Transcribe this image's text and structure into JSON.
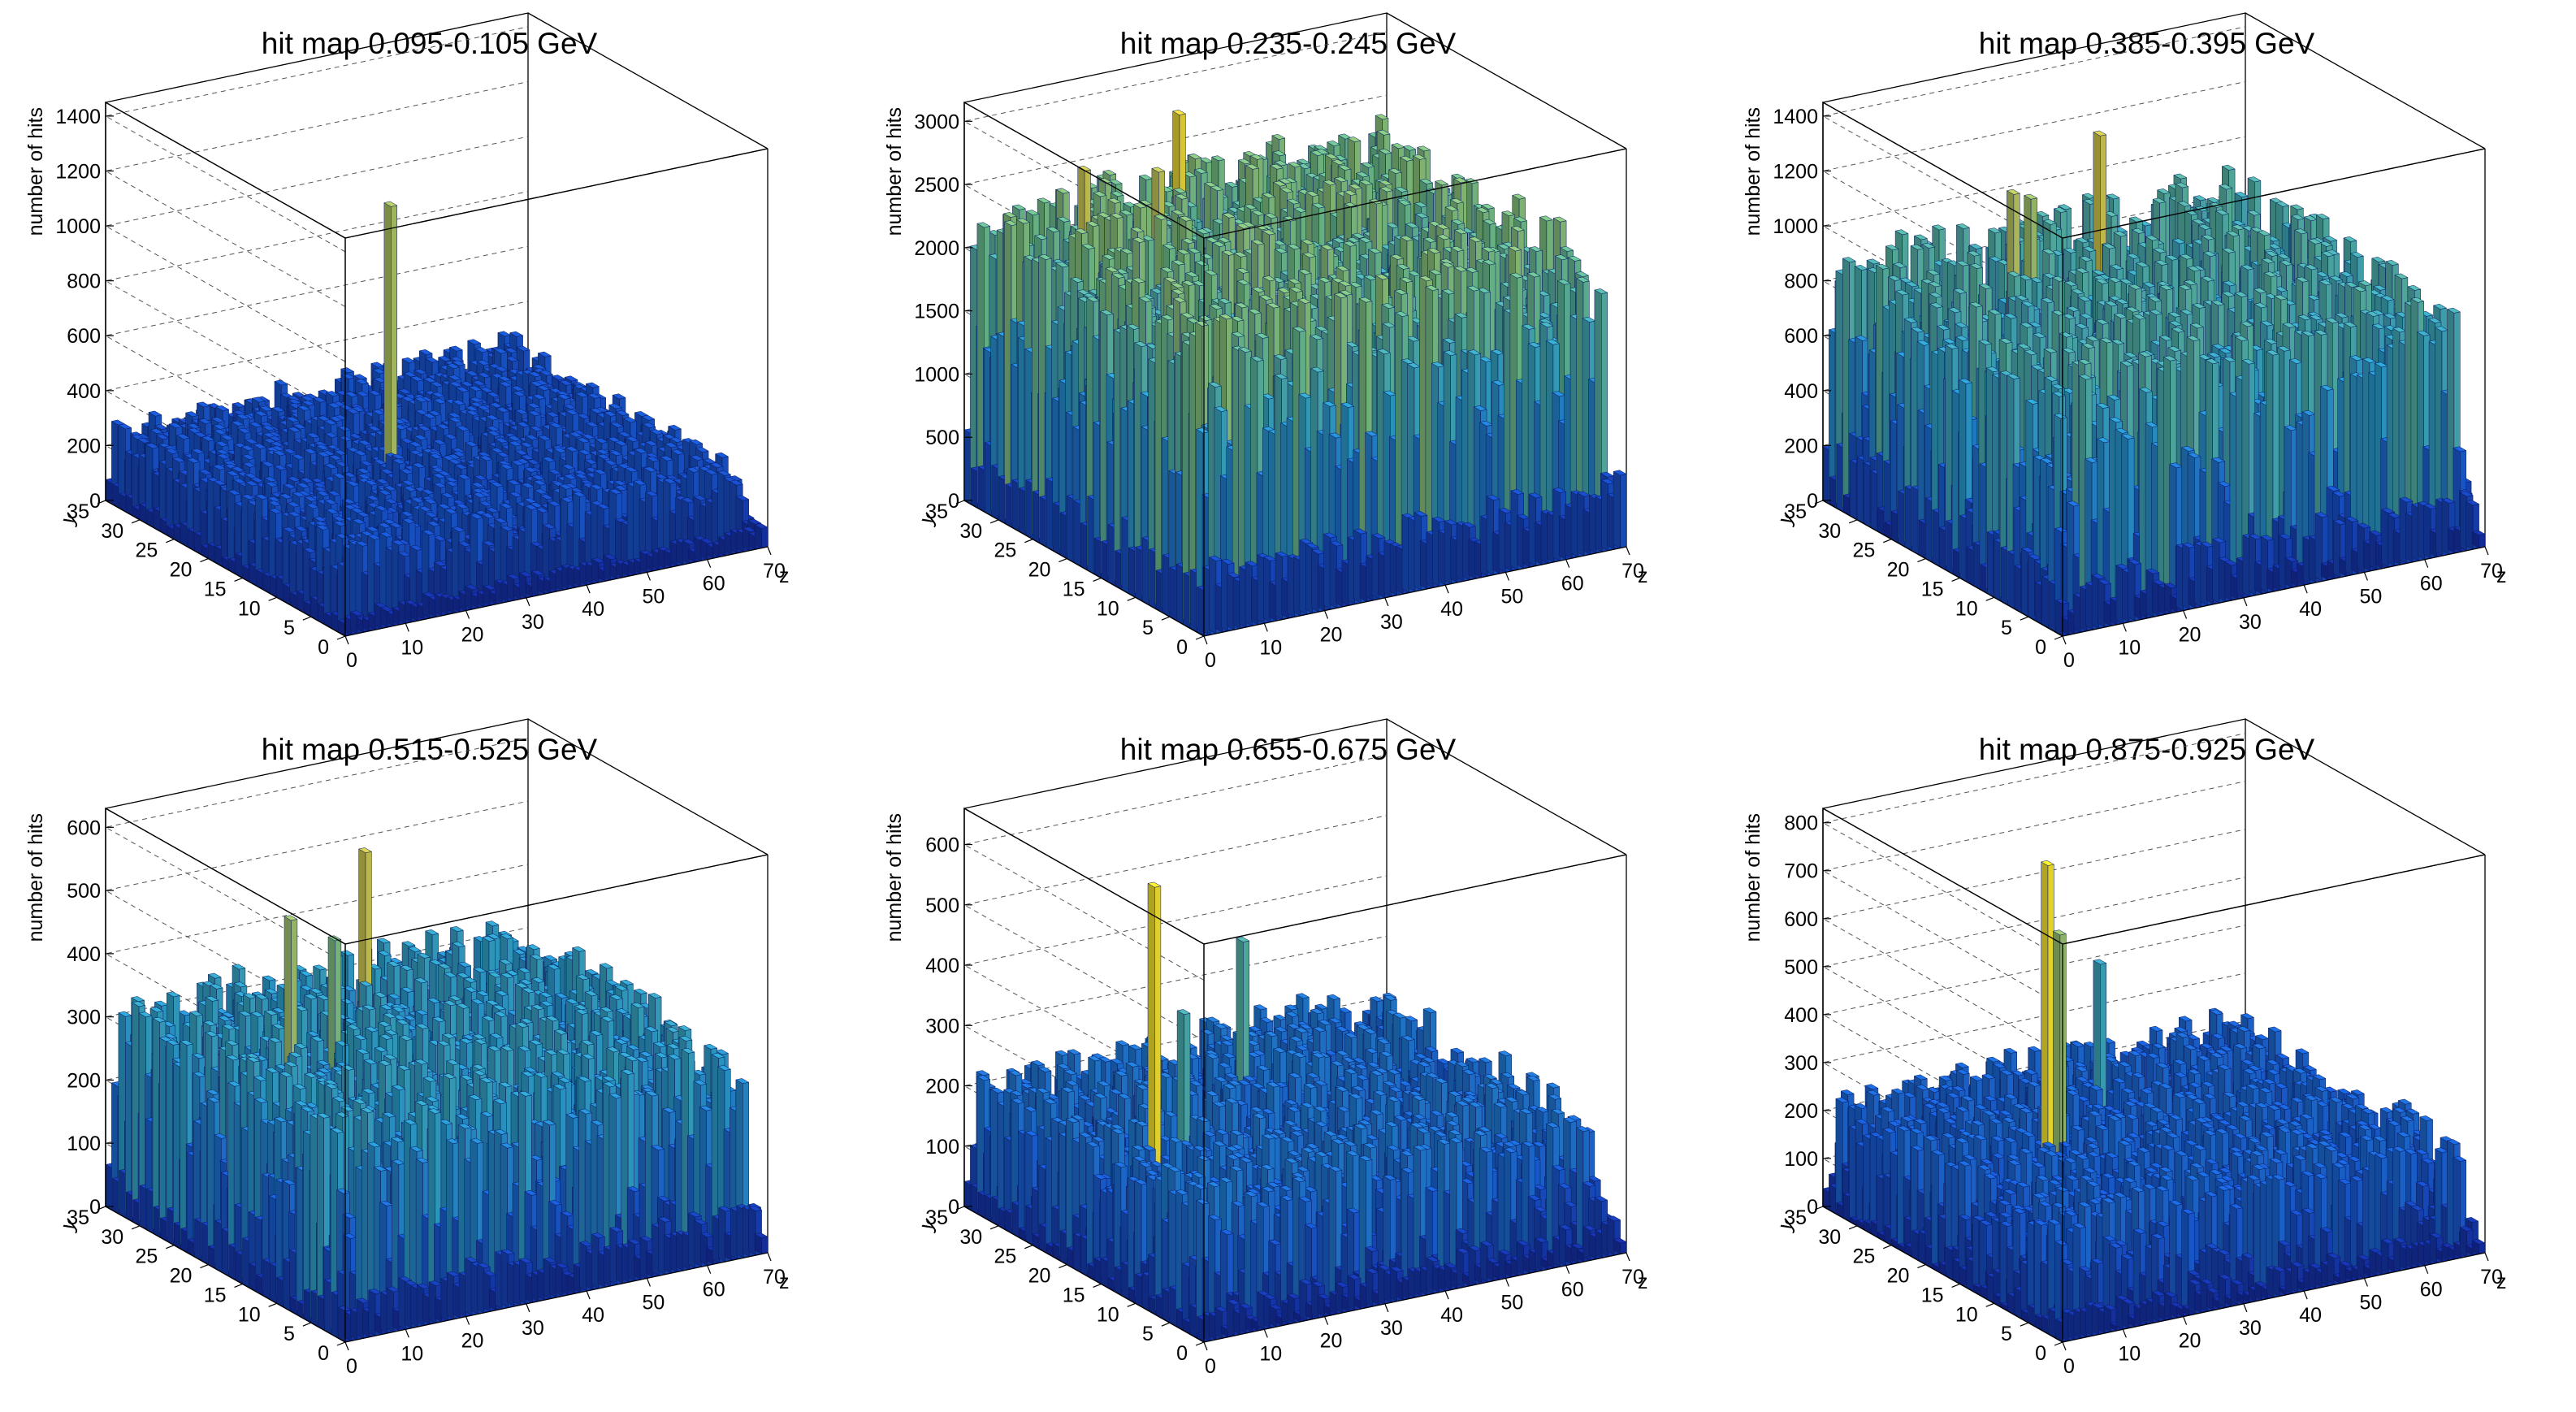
{
  "figure": {
    "layout": "2x3 grid of ROOT lego (3D bar) histograms"
  },
  "chart_data": [
    {
      "type": "lego3d",
      "title": "hit map 0.095-0.105 GeV",
      "xlabel": "z",
      "ylabel": "y",
      "zlabel": "number of hits",
      "x_range": [
        0,
        70
      ],
      "y_range": [
        0,
        35
      ],
      "z_range": [
        0,
        1450
      ],
      "x_ticks": [
        "0",
        "10",
        "20",
        "30",
        "40",
        "50",
        "60",
        "70"
      ],
      "y_ticks": [
        "0",
        "5",
        "10",
        "15",
        "20",
        "25",
        "30",
        "35"
      ],
      "z_ticks": [
        "0",
        "200",
        "400",
        "600",
        "800",
        "1000",
        "1200",
        "1400"
      ],
      "base_level": 220,
      "noise": 90,
      "peaks": [
        {
          "z": 28,
          "y": 18,
          "value": 1180
        }
      ]
    },
    {
      "type": "lego3d",
      "title": "hit map 0.235-0.245 GeV",
      "xlabel": "z",
      "ylabel": "y",
      "zlabel": "number of hits",
      "x_range": [
        0,
        70
      ],
      "y_range": [
        0,
        35
      ],
      "z_range": [
        0,
        3150
      ],
      "x_ticks": [
        "0",
        "10",
        "20",
        "30",
        "40",
        "50",
        "60",
        "70"
      ],
      "y_ticks": [
        "0",
        "5",
        "10",
        "15",
        "20",
        "25",
        "30",
        "35"
      ],
      "z_ticks": [
        "0",
        "500",
        "1000",
        "1500",
        "2000",
        "2500",
        "3000"
      ],
      "base_level": 1700,
      "noise": 700,
      "peaks": [
        {
          "z": 12,
          "y": 28,
          "value": 2700
        },
        {
          "z": 22,
          "y": 26,
          "value": 2650
        },
        {
          "z": 30,
          "y": 30,
          "value": 2900
        },
        {
          "z": 27,
          "y": 18,
          "value": 2400
        }
      ]
    },
    {
      "type": "lego3d",
      "title": "hit map 0.385-0.395 GeV",
      "xlabel": "z",
      "ylabel": "y",
      "zlabel": "number of hits",
      "x_range": [
        0,
        70
      ],
      "y_range": [
        0,
        35
      ],
      "z_range": [
        0,
        1450
      ],
      "x_ticks": [
        "0",
        "10",
        "20",
        "30",
        "40",
        "50",
        "60",
        "70"
      ],
      "y_ticks": [
        "0",
        "5",
        "10",
        "15",
        "20",
        "25",
        "30",
        "35"
      ],
      "z_ticks": [
        "0",
        "200",
        "400",
        "600",
        "800",
        "1000",
        "1200",
        "1400"
      ],
      "base_level": 560,
      "noise": 380,
      "peaks": [
        {
          "z": 18,
          "y": 23,
          "value": 1200
        },
        {
          "z": 22,
          "y": 24,
          "value": 1150
        },
        {
          "z": 38,
          "y": 28,
          "value": 1250
        }
      ]
    },
    {
      "type": "lego3d",
      "title": "hit map 0.515-0.525 GeV",
      "xlabel": "z",
      "ylabel": "y",
      "zlabel": "number of hits",
      "x_range": [
        0,
        70
      ],
      "y_range": [
        0,
        35
      ],
      "z_range": [
        0,
        630
      ],
      "x_ticks": [
        "0",
        "10",
        "20",
        "30",
        "40",
        "50",
        "60",
        "70"
      ],
      "y_ticks": [
        "0",
        "5",
        "10",
        "15",
        "20",
        "25",
        "30",
        "35"
      ],
      "z_ticks": [
        "0",
        "100",
        "200",
        "300",
        "400",
        "500",
        "600"
      ],
      "base_level": 210,
      "noise": 130,
      "peaks": [
        {
          "z": 16,
          "y": 22,
          "value": 500
        },
        {
          "z": 21,
          "y": 20,
          "value": 470
        },
        {
          "z": 34,
          "y": 27,
          "value": 540
        }
      ]
    },
    {
      "type": "lego3d",
      "title": "hit map 0.655-0.675 GeV",
      "xlabel": "z",
      "ylabel": "y",
      "zlabel": "number of hits",
      "x_range": [
        0,
        70
      ],
      "y_range": [
        0,
        35
      ],
      "z_range": [
        0,
        660
      ],
      "x_ticks": [
        "0",
        "10",
        "20",
        "30",
        "40",
        "50",
        "60",
        "70"
      ],
      "y_ticks": [
        "0",
        "5",
        "10",
        "15",
        "20",
        "25",
        "30",
        "35"
      ],
      "z_ticks": [
        "0",
        "100",
        "200",
        "300",
        "400",
        "500",
        "600"
      ],
      "base_level": 140,
      "noise": 100,
      "peaks": [
        {
          "z": 10,
          "y": 16,
          "value": 630
        },
        {
          "z": 16,
          "y": 17,
          "value": 400
        },
        {
          "z": 36,
          "y": 26,
          "value": 420
        }
      ]
    },
    {
      "type": "lego3d",
      "title": "hit map 0.875-0.925 GeV",
      "xlabel": "z",
      "ylabel": "y",
      "zlabel": "number of hits",
      "x_range": [
        0,
        70
      ],
      "y_range": [
        0,
        35
      ],
      "z_range": [
        0,
        830
      ],
      "x_ticks": [
        "0",
        "10",
        "20",
        "30",
        "40",
        "50",
        "60",
        "70"
      ],
      "y_ticks": [
        "0",
        "5",
        "10",
        "15",
        "20",
        "25",
        "30",
        "35"
      ],
      "z_ticks": [
        "0",
        "100",
        "200",
        "300",
        "400",
        "500",
        "600",
        "700",
        "800"
      ],
      "base_level": 140,
      "noise": 110,
      "peaks": [
        {
          "z": 18,
          "y": 18,
          "value": 800
        },
        {
          "z": 20,
          "y": 18,
          "value": 650
        },
        {
          "z": 38,
          "y": 28,
          "value": 460
        }
      ]
    }
  ]
}
